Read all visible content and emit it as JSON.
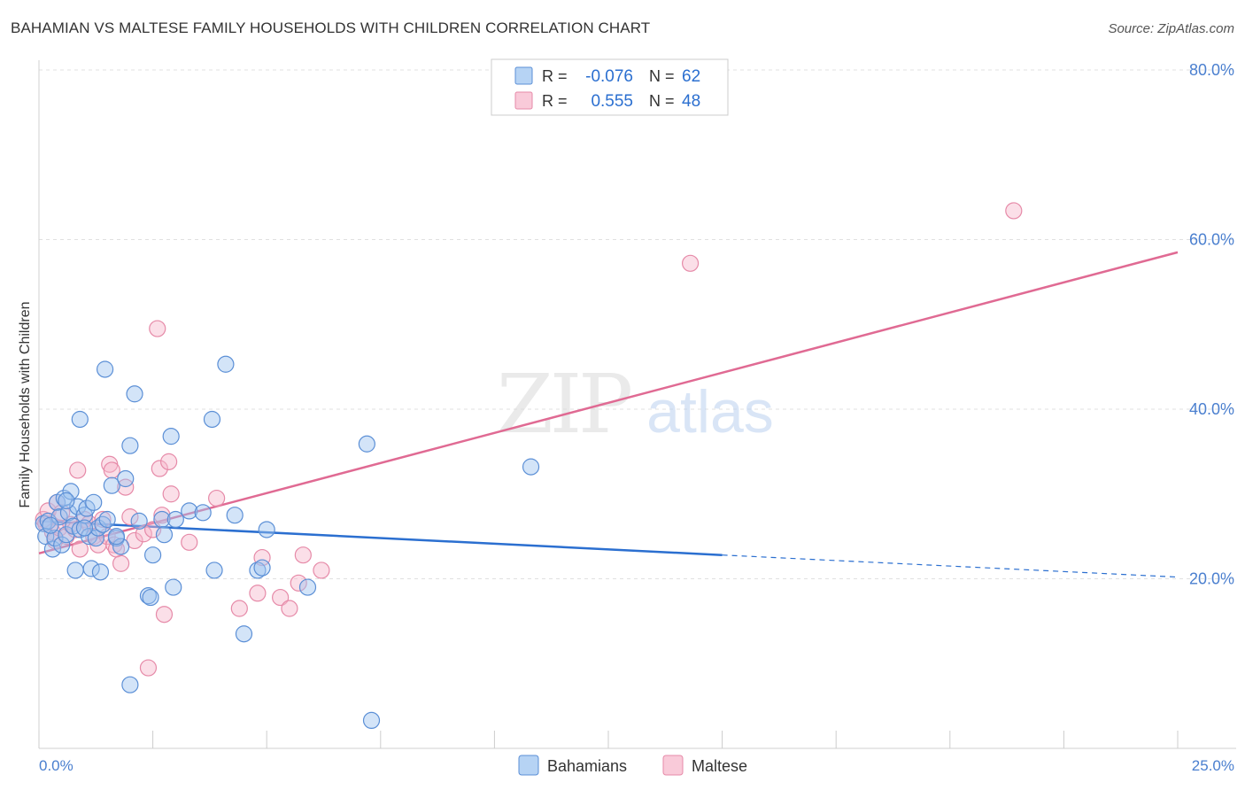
{
  "title": "BAHAMIAN VS MALTESE FAMILY HOUSEHOLDS WITH CHILDREN CORRELATION CHART",
  "source": "Source: ZipAtlas.com",
  "watermark": {
    "zip": "ZIP",
    "atlas": "atlas"
  },
  "colors": {
    "blue_fill": "#9ec4f0",
    "blue_stroke": "#5b8fd6",
    "blue_line": "#2b6fd0",
    "pink_fill": "#f7b8cc",
    "pink_stroke": "#e68aa8",
    "pink_line": "#e06a93",
    "axis_text": "#4a7fcf",
    "grid": "#e0e0e0"
  },
  "stats": {
    "blue": {
      "r_label": "R =",
      "r_value": "-0.076",
      "n_label": "N =",
      "n_value": "62"
    },
    "pink": {
      "r_label": "R =",
      "r_value": "0.555",
      "n_label": "N =",
      "n_value": "48"
    }
  },
  "chart_data": {
    "type": "scatter",
    "title": "BAHAMIAN VS MALTESE FAMILY HOUSEHOLDS WITH CHILDREN CORRELATION CHART",
    "xlabel": "",
    "ylabel": "Family Households with Children",
    "xlim": [
      0,
      25
    ],
    "ylim": [
      0,
      80
    ],
    "x_tick_labels": [
      "0.0%",
      "25.0%"
    ],
    "y_ticks": [
      20,
      40,
      60,
      80
    ],
    "y_tick_labels": [
      "20.0%",
      "40.0%",
      "60.0%",
      "80.0%"
    ],
    "grid": true,
    "legend_position": "bottom",
    "series": [
      {
        "name": "Bahamians",
        "color": "#9ec4f0",
        "points": [
          [
            0.1,
            26.5
          ],
          [
            0.15,
            25.0
          ],
          [
            0.2,
            26.8
          ],
          [
            0.3,
            23.5
          ],
          [
            0.35,
            24.8
          ],
          [
            0.4,
            29.0
          ],
          [
            0.45,
            27.3
          ],
          [
            0.5,
            24.0
          ],
          [
            0.55,
            29.5
          ],
          [
            0.6,
            25.2
          ],
          [
            0.65,
            27.8
          ],
          [
            0.7,
            30.3
          ],
          [
            0.75,
            26.2
          ],
          [
            0.8,
            21.0
          ],
          [
            0.85,
            28.5
          ],
          [
            0.9,
            25.8
          ],
          [
            0.9,
            38.8
          ],
          [
            1.0,
            27.5
          ],
          [
            1.05,
            28.3
          ],
          [
            1.1,
            25.0
          ],
          [
            1.15,
            21.2
          ],
          [
            1.2,
            29.0
          ],
          [
            1.25,
            24.8
          ],
          [
            1.3,
            26.0
          ],
          [
            1.35,
            20.8
          ],
          [
            1.4,
            26.4
          ],
          [
            1.45,
            44.7
          ],
          [
            1.5,
            27.0
          ],
          [
            1.6,
            31.0
          ],
          [
            1.7,
            24.8
          ],
          [
            1.8,
            23.8
          ],
          [
            1.9,
            31.8
          ],
          [
            2.0,
            35.7
          ],
          [
            2.0,
            7.5
          ],
          [
            2.1,
            41.8
          ],
          [
            2.2,
            26.8
          ],
          [
            2.4,
            18.0
          ],
          [
            2.45,
            17.8
          ],
          [
            2.5,
            22.8
          ],
          [
            2.7,
            27.0
          ],
          [
            2.75,
            25.2
          ],
          [
            2.9,
            36.8
          ],
          [
            2.95,
            19.0
          ],
          [
            3.0,
            27.0
          ],
          [
            3.3,
            28.0
          ],
          [
            3.6,
            27.8
          ],
          [
            3.8,
            38.8
          ],
          [
            3.85,
            21.0
          ],
          [
            4.1,
            45.3
          ],
          [
            4.3,
            27.5
          ],
          [
            4.5,
            13.5
          ],
          [
            4.8,
            21.0
          ],
          [
            4.9,
            21.3
          ],
          [
            5.0,
            25.8
          ],
          [
            5.9,
            19.0
          ],
          [
            7.2,
            35.9
          ],
          [
            7.3,
            3.3
          ],
          [
            10.8,
            33.2
          ],
          [
            0.25,
            26.3
          ],
          [
            0.6,
            29.2
          ],
          [
            1.0,
            26.0
          ],
          [
            1.7,
            25.0
          ]
        ]
      },
      {
        "name": "Maltese",
        "color": "#f7b8cc",
        "points": [
          [
            0.1,
            27.0
          ],
          [
            0.15,
            26.5
          ],
          [
            0.2,
            28.0
          ],
          [
            0.3,
            25.5
          ],
          [
            0.35,
            24.5
          ],
          [
            0.4,
            29.0
          ],
          [
            0.45,
            26.0
          ],
          [
            0.5,
            27.8
          ],
          [
            0.6,
            25.0
          ],
          [
            0.7,
            26.4
          ],
          [
            0.8,
            25.8
          ],
          [
            0.85,
            32.8
          ],
          [
            0.9,
            23.5
          ],
          [
            1.0,
            27.0
          ],
          [
            1.1,
            26.5
          ],
          [
            1.2,
            25.0
          ],
          [
            1.3,
            24.0
          ],
          [
            1.4,
            27.0
          ],
          [
            1.5,
            25.0
          ],
          [
            1.55,
            33.5
          ],
          [
            1.6,
            32.8
          ],
          [
            1.65,
            24.0
          ],
          [
            1.7,
            23.5
          ],
          [
            1.8,
            21.8
          ],
          [
            1.9,
            30.8
          ],
          [
            2.0,
            27.3
          ],
          [
            2.1,
            24.5
          ],
          [
            2.3,
            25.3
          ],
          [
            2.4,
            9.5
          ],
          [
            2.5,
            25.8
          ],
          [
            2.6,
            49.5
          ],
          [
            2.65,
            33.0
          ],
          [
            2.7,
            27.5
          ],
          [
            2.75,
            15.8
          ],
          [
            2.85,
            33.8
          ],
          [
            2.9,
            30.0
          ],
          [
            3.3,
            24.3
          ],
          [
            3.9,
            29.5
          ],
          [
            4.4,
            16.5
          ],
          [
            4.8,
            18.3
          ],
          [
            4.9,
            22.5
          ],
          [
            5.3,
            17.8
          ],
          [
            5.5,
            16.5
          ],
          [
            5.7,
            19.5
          ],
          [
            5.8,
            22.8
          ],
          [
            6.2,
            21.0
          ],
          [
            14.3,
            57.2
          ],
          [
            21.4,
            63.4
          ]
        ]
      }
    ],
    "trend_lines": [
      {
        "series": "Bahamians",
        "x": [
          0,
          15
        ],
        "y": [
          26.8,
          22.8
        ],
        "extended_to_x": 25,
        "extended_y": 20.2
      },
      {
        "series": "Maltese",
        "x": [
          0,
          25
        ],
        "y": [
          23.0,
          58.5
        ]
      }
    ]
  }
}
